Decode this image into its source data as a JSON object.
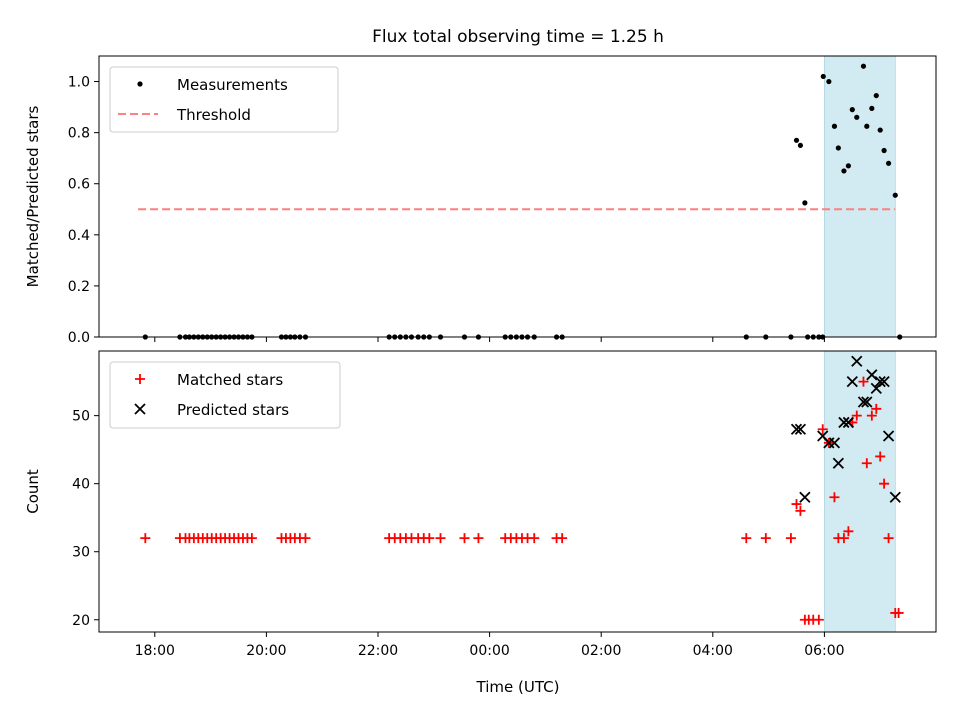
{
  "figure": {
    "title": "Flux total observing time = 1.25 h",
    "xlabel": "Time (UTC)",
    "xticks": [
      {
        "label": "18:00",
        "hour": 18
      },
      {
        "label": "20:00",
        "hour": 20
      },
      {
        "label": "22:00",
        "hour": 22
      },
      {
        "label": "00:00",
        "hour": 24
      },
      {
        "label": "02:00",
        "hour": 26
      },
      {
        "label": "04:00",
        "hour": 28
      },
      {
        "label": "06:00",
        "hour": 30
      }
    ],
    "xlim": [
      17.0,
      32.0
    ],
    "shaded_span": [
      30.0,
      31.27
    ],
    "colors": {
      "shade": "#add8e6",
      "threshold": "#ff7f7f",
      "matched": "#ff0000",
      "predicted": "#000000",
      "measurement": "#000000"
    }
  },
  "chart_data": [
    {
      "type": "scatter",
      "ylabel": "Matched/Predicted stars",
      "ylim": [
        0,
        1.1
      ],
      "yticks": [
        "0.0",
        "0.2",
        "0.4",
        "0.6",
        "0.8",
        "1.0"
      ],
      "legend_position": "top-left",
      "series": [
        {
          "name": "Measurements",
          "marker": "dot",
          "points": [
            [
              17.83,
              0
            ],
            [
              18.45,
              0
            ],
            [
              18.55,
              0
            ],
            [
              18.62,
              0
            ],
            [
              18.7,
              0
            ],
            [
              18.78,
              0
            ],
            [
              18.86,
              0
            ],
            [
              18.94,
              0
            ],
            [
              19.02,
              0
            ],
            [
              19.1,
              0
            ],
            [
              19.18,
              0
            ],
            [
              19.26,
              0
            ],
            [
              19.34,
              0
            ],
            [
              19.42,
              0
            ],
            [
              19.5,
              0
            ],
            [
              19.58,
              0
            ],
            [
              19.66,
              0
            ],
            [
              19.74,
              0
            ],
            [
              20.27,
              0
            ],
            [
              20.35,
              0
            ],
            [
              20.43,
              0
            ],
            [
              20.51,
              0
            ],
            [
              20.6,
              0
            ],
            [
              20.7,
              0
            ],
            [
              22.2,
              0
            ],
            [
              22.3,
              0
            ],
            [
              22.4,
              0
            ],
            [
              22.5,
              0
            ],
            [
              22.6,
              0
            ],
            [
              22.72,
              0
            ],
            [
              22.82,
              0
            ],
            [
              22.92,
              0
            ],
            [
              23.12,
              0
            ],
            [
              23.55,
              0
            ],
            [
              23.8,
              0
            ],
            [
              24.28,
              0
            ],
            [
              24.38,
              0
            ],
            [
              24.48,
              0
            ],
            [
              24.58,
              0
            ],
            [
              24.68,
              0
            ],
            [
              24.8,
              0
            ],
            [
              25.2,
              0
            ],
            [
              25.3,
              0
            ],
            [
              28.6,
              0
            ],
            [
              28.95,
              0
            ],
            [
              29.4,
              0
            ],
            [
              29.7,
              0
            ],
            [
              29.8,
              0
            ],
            [
              29.9,
              0
            ],
            [
              29.97,
              0
            ],
            [
              31.35,
              0
            ],
            [
              29.5,
              0.77
            ],
            [
              29.57,
              0.75
            ],
            [
              29.65,
              0.525
            ],
            [
              29.98,
              1.02
            ],
            [
              30.08,
              1.0
            ],
            [
              30.18,
              0.825
            ],
            [
              30.25,
              0.74
            ],
            [
              30.35,
              0.65
            ],
            [
              30.43,
              0.67
            ],
            [
              30.5,
              0.89
            ],
            [
              30.58,
              0.86
            ],
            [
              30.7,
              1.06
            ],
            [
              30.76,
              0.825
            ],
            [
              30.85,
              0.895
            ],
            [
              30.93,
              0.945
            ],
            [
              31.0,
              0.81
            ],
            [
              31.07,
              0.73
            ],
            [
              31.15,
              0.68
            ],
            [
              31.27,
              0.555
            ]
          ]
        },
        {
          "name": "Threshold",
          "marker": "dashed-line",
          "points": [
            [
              17.7,
              0.5
            ],
            [
              31.27,
              0.5
            ]
          ]
        }
      ]
    },
    {
      "type": "scatter",
      "ylabel": "Count",
      "ylim": [
        18.2,
        59.5
      ],
      "yticks": [
        "20",
        "30",
        "40",
        "50"
      ],
      "legend_position": "top-left",
      "series": [
        {
          "name": "Matched stars",
          "marker": "plus",
          "points": [
            [
              17.83,
              32
            ],
            [
              18.45,
              32
            ],
            [
              18.55,
              32
            ],
            [
              18.62,
              32
            ],
            [
              18.7,
              32
            ],
            [
              18.78,
              32
            ],
            [
              18.86,
              32
            ],
            [
              18.94,
              32
            ],
            [
              19.02,
              32
            ],
            [
              19.1,
              32
            ],
            [
              19.18,
              32
            ],
            [
              19.26,
              32
            ],
            [
              19.34,
              32
            ],
            [
              19.42,
              32
            ],
            [
              19.5,
              32
            ],
            [
              19.58,
              32
            ],
            [
              19.66,
              32
            ],
            [
              19.74,
              32
            ],
            [
              20.27,
              32
            ],
            [
              20.35,
              32
            ],
            [
              20.43,
              32
            ],
            [
              20.51,
              32
            ],
            [
              20.6,
              32
            ],
            [
              20.7,
              32
            ],
            [
              22.2,
              32
            ],
            [
              22.3,
              32
            ],
            [
              22.4,
              32
            ],
            [
              22.5,
              32
            ],
            [
              22.6,
              32
            ],
            [
              22.72,
              32
            ],
            [
              22.82,
              32
            ],
            [
              22.92,
              32
            ],
            [
              23.12,
              32
            ],
            [
              23.55,
              32
            ],
            [
              23.8,
              32
            ],
            [
              24.28,
              32
            ],
            [
              24.38,
              32
            ],
            [
              24.48,
              32
            ],
            [
              24.58,
              32
            ],
            [
              24.68,
              32
            ],
            [
              24.8,
              32
            ],
            [
              25.2,
              32
            ],
            [
              25.3,
              32
            ],
            [
              28.6,
              32
            ],
            [
              28.95,
              32
            ],
            [
              29.4,
              32
            ],
            [
              29.5,
              37
            ],
            [
              29.57,
              36
            ],
            [
              29.65,
              20
            ],
            [
              29.72,
              20
            ],
            [
              29.8,
              20
            ],
            [
              29.9,
              20
            ],
            [
              29.97,
              48
            ],
            [
              30.08,
              46
            ],
            [
              30.18,
              38
            ],
            [
              30.25,
              32
            ],
            [
              30.35,
              32
            ],
            [
              30.43,
              33
            ],
            [
              30.5,
              49
            ],
            [
              30.58,
              50
            ],
            [
              30.7,
              55
            ],
            [
              30.76,
              43
            ],
            [
              30.85,
              50
            ],
            [
              30.93,
              51
            ],
            [
              31.0,
              44
            ],
            [
              31.07,
              40
            ],
            [
              31.15,
              32
            ],
            [
              31.27,
              21
            ],
            [
              31.33,
              21
            ]
          ]
        },
        {
          "name": "Predicted stars",
          "marker": "x",
          "points": [
            [
              29.5,
              48
            ],
            [
              29.57,
              48
            ],
            [
              29.65,
              38
            ],
            [
              29.97,
              47
            ],
            [
              30.08,
              46
            ],
            [
              30.18,
              46
            ],
            [
              30.25,
              43
            ],
            [
              30.35,
              49
            ],
            [
              30.43,
              49
            ],
            [
              30.5,
              55
            ],
            [
              30.58,
              58
            ],
            [
              30.7,
              52
            ],
            [
              30.76,
              52
            ],
            [
              30.85,
              56
            ],
            [
              30.93,
              54
            ],
            [
              31.0,
              55
            ],
            [
              31.07,
              55
            ],
            [
              31.15,
              47
            ],
            [
              31.27,
              38
            ]
          ]
        }
      ]
    }
  ]
}
